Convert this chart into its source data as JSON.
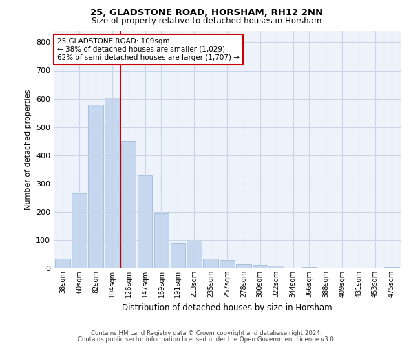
{
  "title1": "25, GLADSTONE ROAD, HORSHAM, RH12 2NN",
  "title2": "Size of property relative to detached houses in Horsham",
  "xlabel": "Distribution of detached houses by size in Horsham",
  "ylabel": "Number of detached properties",
  "categories": [
    "38sqm",
    "60sqm",
    "82sqm",
    "104sqm",
    "126sqm",
    "147sqm",
    "169sqm",
    "191sqm",
    "213sqm",
    "235sqm",
    "257sqm",
    "278sqm",
    "300sqm",
    "322sqm",
    "344sqm",
    "366sqm",
    "388sqm",
    "409sqm",
    "431sqm",
    "453sqm",
    "475sqm"
  ],
  "values": [
    35,
    265,
    580,
    605,
    450,
    328,
    195,
    90,
    100,
    35,
    30,
    15,
    12,
    10,
    0,
    5,
    0,
    0,
    0,
    0,
    5
  ],
  "bar_color": "#c5d8f0",
  "bar_edge_color": "#a0bcd8",
  "vline_x": 3.5,
  "vline_color": "#cc0000",
  "annotation_line1": "25 GLADSTONE ROAD: 109sqm",
  "annotation_line2": "← 38% of detached houses are smaller (1,029)",
  "annotation_line3": "62% of semi-detached houses are larger (1,707) →",
  "annotation_box_color": "#ffffff",
  "annotation_box_edge": "#cc0000",
  "ylim": [
    0,
    840
  ],
  "yticks": [
    0,
    100,
    200,
    300,
    400,
    500,
    600,
    700,
    800
  ],
  "grid_color": "#c8d4e8",
  "bg_color": "#eef2fb",
  "footer1": "Contains HM Land Registry data © Crown copyright and database right 2024.",
  "footer2": "Contains public sector information licensed under the Open Government Licence v3.0."
}
